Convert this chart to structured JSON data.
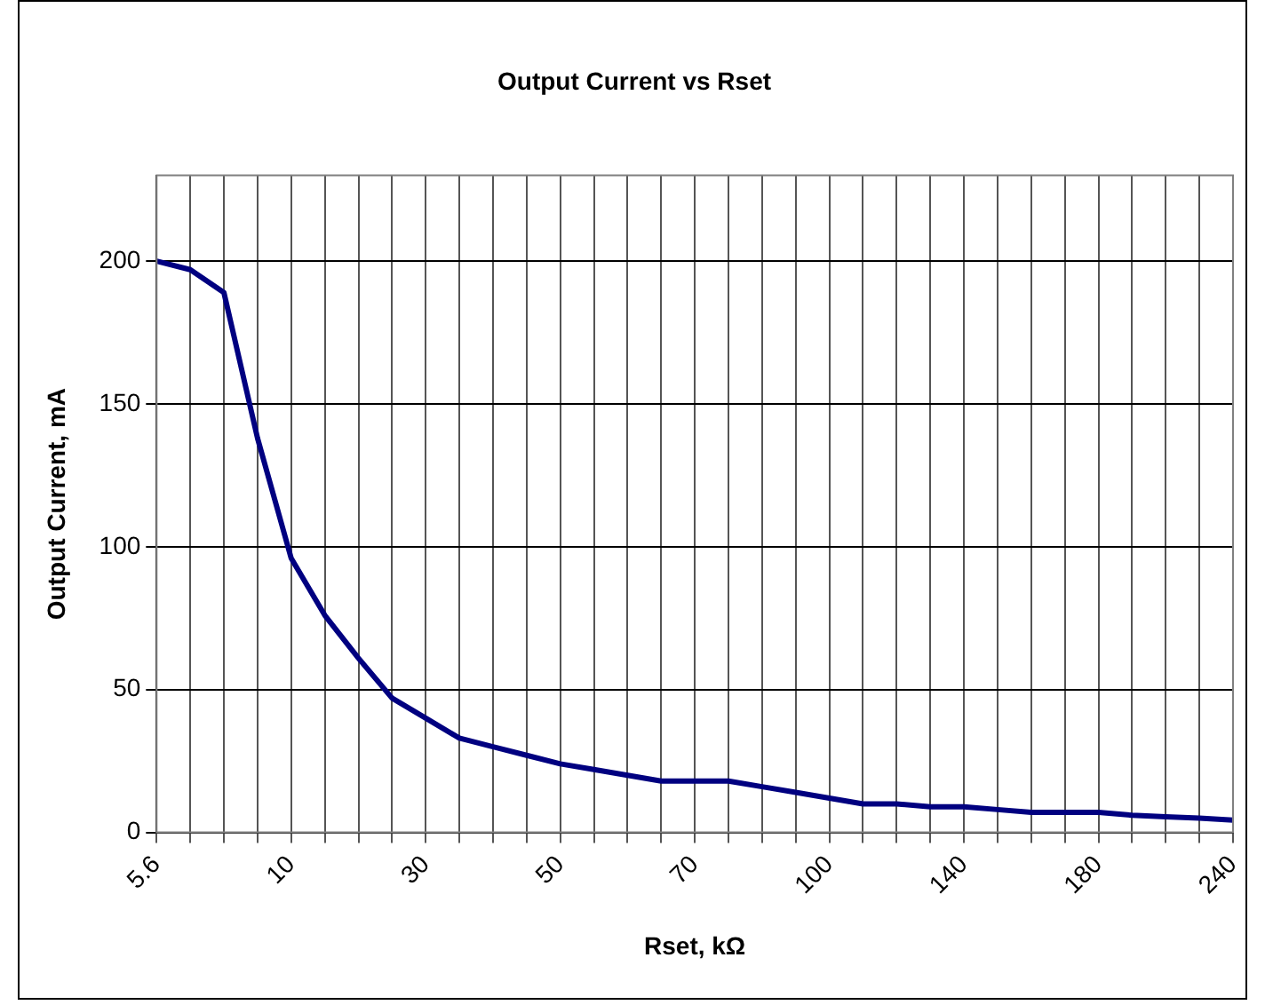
{
  "chart_data": {
    "type": "line",
    "title": "Output Current vs Rset",
    "xlabel": "Rset, kΩ",
    "ylabel": "Output Current, mA",
    "categories": [
      "5.6",
      null,
      null,
      null,
      "10",
      null,
      null,
      null,
      "30",
      null,
      null,
      null,
      "50",
      null,
      null,
      null,
      "70",
      null,
      null,
      null,
      "100",
      null,
      null,
      null,
      "140",
      null,
      null,
      null,
      "180",
      null,
      null,
      null,
      "240"
    ],
    "series": [
      {
        "color": "#000080",
        "values": [
          200,
          197,
          189,
          138,
          96,
          76,
          61,
          47,
          40,
          33,
          30,
          27,
          24,
          22,
          20,
          18,
          18,
          18,
          16,
          14,
          12,
          10,
          10,
          9,
          9,
          8,
          7,
          7,
          7,
          6,
          5.5,
          5,
          4.3
        ]
      }
    ],
    "ylim": [
      0,
      230
    ],
    "yticks": [
      0,
      50,
      100,
      150,
      200
    ],
    "grid": true,
    "legend": false,
    "marker": "none",
    "line_style": "solid"
  }
}
